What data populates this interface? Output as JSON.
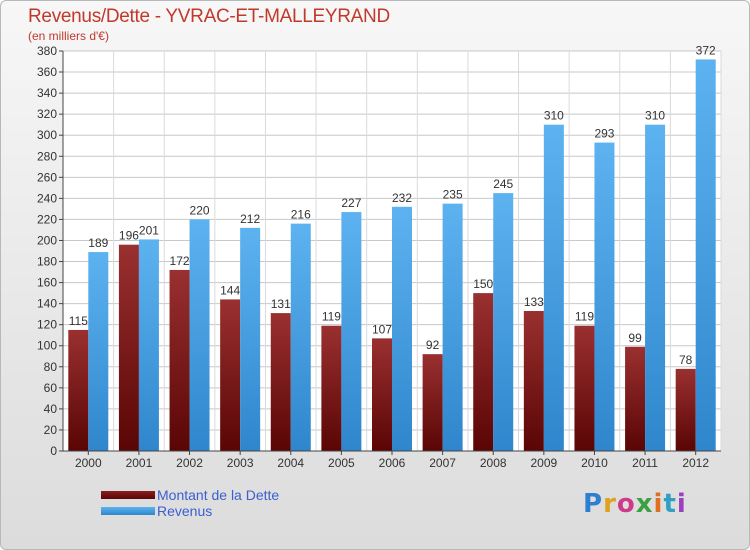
{
  "header": {
    "title": "Revenus/Dette - YVRAC-ET-MALLEYRAND",
    "subtitle": "(en milliers d'€)"
  },
  "legend": {
    "items": [
      {
        "label": "Montant de la Dette",
        "color": "#6b0d0d"
      },
      {
        "label": "Revenus",
        "color": "#4aa0e6"
      }
    ]
  },
  "logo": {
    "text": "Proxiti"
  },
  "chart_data": {
    "type": "bar",
    "title": "Revenus/Dette - YVRAC-ET-MALLEYRAND",
    "ylabel": "(en milliers d'€)",
    "categories": [
      "2000",
      "2001",
      "2002",
      "2003",
      "2004",
      "2005",
      "2006",
      "2007",
      "2008",
      "2009",
      "2010",
      "2011",
      "2012"
    ],
    "series": [
      {
        "name": "Montant de la Dette",
        "color": "#6b0d0d",
        "values": [
          115,
          196,
          172,
          144,
          131,
          119,
          107,
          92,
          150,
          133,
          119,
          99,
          78
        ]
      },
      {
        "name": "Revenus",
        "color": "#4aa0e6",
        "values": [
          189,
          201,
          220,
          212,
          216,
          227,
          232,
          235,
          245,
          310,
          293,
          310,
          372
        ]
      }
    ],
    "ylim": [
      0,
      380
    ],
    "ytick_step": 20,
    "grid": true,
    "legend_position": "bottom-left"
  }
}
